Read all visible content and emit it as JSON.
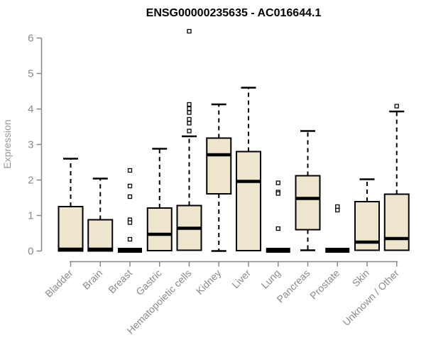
{
  "chart_data": {
    "type": "boxplot",
    "title": "ENSG00000235635 - AC016644.1",
    "ylabel": "Expression",
    "xlabel": "",
    "ylim": [
      0,
      6
    ],
    "yticks": [
      0,
      1,
      2,
      3,
      4,
      5,
      6
    ],
    "grid": false,
    "legend": "none",
    "categories": [
      "Bladder",
      "Brain",
      "Breast",
      "Gastric",
      "Hematopoietic cells",
      "Kidney",
      "Liver",
      "Lung",
      "Pancreas",
      "Prostate",
      "Skin",
      "Unknown / Other"
    ],
    "series": [
      {
        "category": "Bladder",
        "low": 0,
        "q1": 0,
        "median": 0.05,
        "q3": 1.25,
        "high": 2.6,
        "outliers": []
      },
      {
        "category": "Brain",
        "low": 0,
        "q1": 0,
        "median": 0.05,
        "q3": 0.88,
        "high": 2.04,
        "outliers": []
      },
      {
        "category": "Breast",
        "low": 0,
        "q1": 0,
        "median": 0.02,
        "q3": 0.04,
        "high": 0.04,
        "outliers": [
          2.27,
          1.83,
          1.53,
          0.88,
          0.8,
          0.33
        ]
      },
      {
        "category": "Gastric",
        "low": 0.01,
        "q1": 0.01,
        "median": 0.47,
        "q3": 1.21,
        "high": 2.88,
        "outliers": []
      },
      {
        "category": "Hematopoietic cells",
        "low": 0,
        "q1": 0.02,
        "median": 0.64,
        "q3": 1.28,
        "high": 3.23,
        "outliers": [
          6.19,
          4.13,
          4.01,
          3.9,
          3.71,
          3.6,
          3.38
        ]
      },
      {
        "category": "Kidney",
        "low": 0,
        "q1": 1.61,
        "median": 2.71,
        "q3": 3.18,
        "high": 4.13,
        "outliers": []
      },
      {
        "category": "Liver",
        "low": 0,
        "q1": 0.01,
        "median": 1.96,
        "q3": 2.8,
        "high": 4.6,
        "outliers": []
      },
      {
        "category": "Lung",
        "low": 0,
        "q1": 0,
        "median": 0.02,
        "q3": 0.04,
        "high": 0.04,
        "outliers": [
          1.92,
          1.66,
          1.62,
          0.63
        ]
      },
      {
        "category": "Pancreas",
        "low": 0.02,
        "q1": 0.6,
        "median": 1.48,
        "q3": 2.12,
        "high": 3.38,
        "outliers": []
      },
      {
        "category": "Prostate",
        "low": 0,
        "q1": 0,
        "median": 0.02,
        "q3": 0.04,
        "high": 0.04,
        "outliers": [
          1.25,
          1.15
        ]
      },
      {
        "category": "Skin",
        "low": 0,
        "q1": 0.02,
        "median": 0.25,
        "q3": 1.39,
        "high": 2.02,
        "outliers": []
      },
      {
        "category": "Unknown / Other",
        "low": 0,
        "q1": 0.02,
        "median": 0.35,
        "q3": 1.6,
        "high": 3.93,
        "outliers": [
          4.08
        ]
      }
    ],
    "colors": {
      "background": "#ffffff",
      "box_fill": "#EDE5CC",
      "box_stroke": "#000000",
      "median": "#000000",
      "whisker": "#000000",
      "outlier_fill": "#ffffff",
      "axis": "#888888",
      "tick_label": "#8a8a8a",
      "axis_label": "#9a9a9a",
      "title": "#000000"
    }
  }
}
